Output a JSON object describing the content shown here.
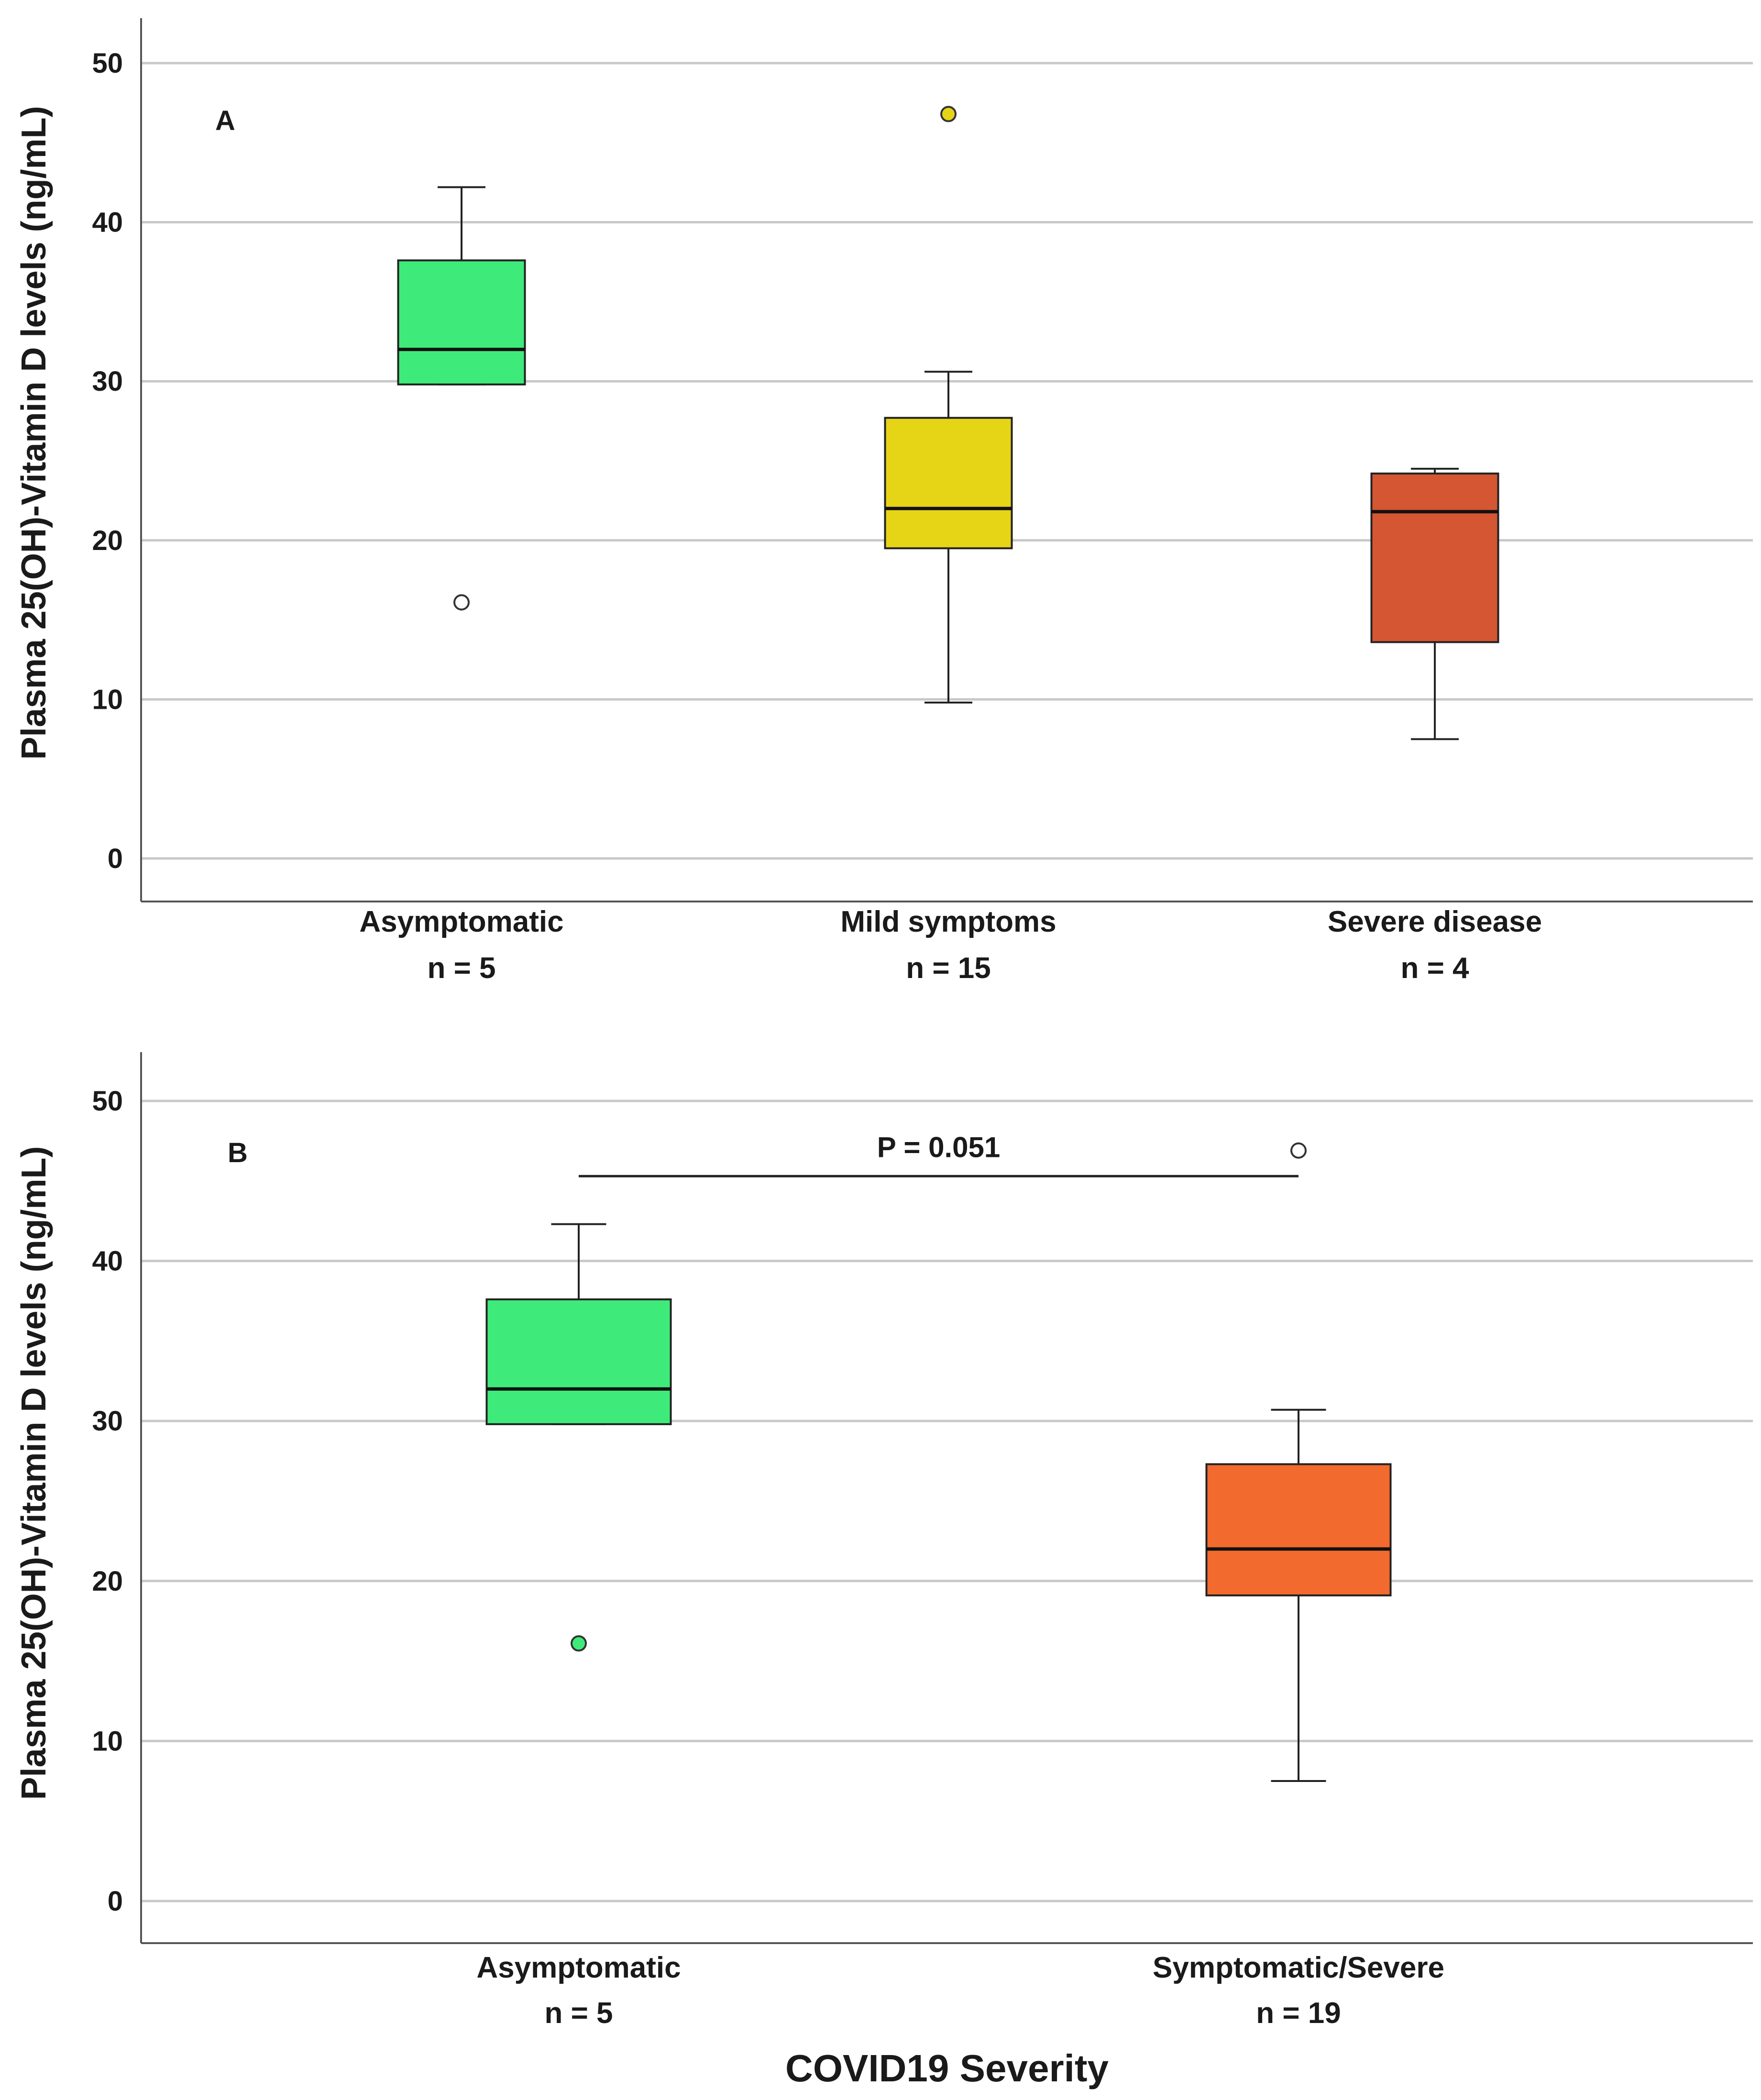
{
  "chart_data": [
    {
      "type": "box",
      "panel_label": "A",
      "ylabel": "Plasma 25(OH)-Vitamin D levels (ng/mL)",
      "xlabel": "",
      "ylim": [
        -5,
        52
      ],
      "yticks": [
        0,
        10,
        20,
        30,
        40,
        50
      ],
      "grid": true,
      "categories": [
        {
          "label": "Asymptomatic",
          "n_label": "n = 5",
          "color": "#3EEB7A",
          "whisker_low": 29.8,
          "q1": 29.8,
          "median": 32.0,
          "q3": 37.6,
          "whisker_high": 42.2,
          "outliers": [
            16.1
          ],
          "outlier_fill": "#ffffff"
        },
        {
          "label": "Mild symptoms",
          "n_label": "n = 15",
          "color": "#E6D417",
          "whisker_low": 9.8,
          "q1": 19.5,
          "median": 22.0,
          "q3": 27.7,
          "whisker_high": 30.6,
          "outliers": [
            46.8
          ],
          "outlier_fill": "#E6D417"
        },
        {
          "label": "Severe disease",
          "n_label": "n = 4",
          "color": "#D45633",
          "whisker_low": 7.5,
          "q1": 13.6,
          "median": 21.8,
          "q3": 24.2,
          "whisker_high": 24.5,
          "outliers": [],
          "outlier_fill": "#ffffff"
        }
      ]
    },
    {
      "type": "box",
      "panel_label": "B",
      "ylabel": "Plasma 25(OH)-Vitamin D levels (ng/mL)",
      "xlabel": "COVID19 Severity",
      "ylim": [
        -5,
        52
      ],
      "yticks": [
        0,
        10,
        20,
        30,
        40,
        50
      ],
      "grid": true,
      "annotation": {
        "text": "P = 0.051",
        "y": 45.3,
        "from": 0,
        "to": 1
      },
      "categories": [
        {
          "label": "Asymptomatic",
          "n_label": "n = 5",
          "color": "#3EEB7A",
          "whisker_low": 29.8,
          "q1": 29.8,
          "median": 32.0,
          "q3": 37.6,
          "whisker_high": 42.3,
          "outliers": [
            16.1
          ],
          "outlier_fill": "#3EEB7A"
        },
        {
          "label": "Symptomatic/Severe",
          "n_label": "n = 19",
          "color": "#F26A2E",
          "whisker_low": 7.5,
          "q1": 19.1,
          "median": 22.0,
          "q3": 27.3,
          "whisker_high": 30.7,
          "outliers": [
            46.9
          ],
          "outlier_fill": "#ffffff"
        }
      ]
    }
  ]
}
